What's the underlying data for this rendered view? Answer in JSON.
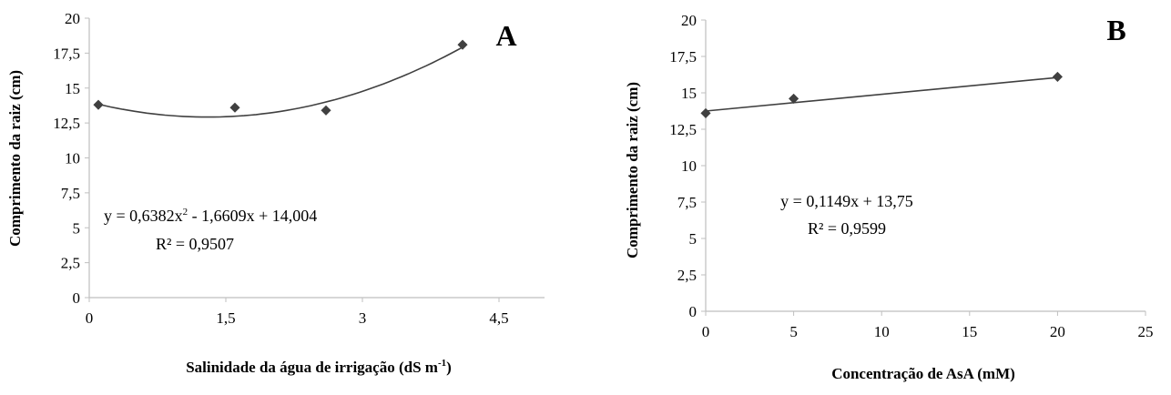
{
  "chart_data": [
    {
      "type": "scatter",
      "panel_label": "A",
      "xlabel_main": "Salinidade da água de irrigação (dS m",
      "xlabel_sup": "-1",
      "xlabel_end": ")",
      "ylabel": "Comprimento  da raiz  (cm)",
      "xlim": [
        0,
        5
      ],
      "ylim": [
        0,
        20
      ],
      "xticks": [
        0,
        1.5,
        3,
        4.5
      ],
      "xtick_labels": [
        "0",
        "1,5",
        "3",
        "4,5"
      ],
      "yticks": [
        0,
        2.5,
        5,
        7.5,
        10,
        12.5,
        15,
        17.5,
        20
      ],
      "ytick_labels": [
        "0",
        "2,5",
        "5",
        "7,5",
        "10",
        "12,5",
        "15",
        "17,5",
        "20"
      ],
      "points": [
        {
          "x": 0.1,
          "y": 13.8
        },
        {
          "x": 1.6,
          "y": 13.6
        },
        {
          "x": 2.6,
          "y": 13.4
        },
        {
          "x": 4.1,
          "y": 18.1
        }
      ],
      "trendline": {
        "kind": "quadratic",
        "a": 0.6382,
        "b": -1.6609,
        "c": 14.004,
        "x_range": [
          0.1,
          4.1
        ]
      },
      "equation_line1_main": "y = 0,6382x",
      "equation_line1_sup": "2",
      "equation_line1_end": " - 1,6609x + 14,004",
      "equation_line2": "R² = 0,9507",
      "grid": false,
      "marker": "diamond",
      "color": "#404040"
    },
    {
      "type": "scatter",
      "panel_label": "B",
      "xlabel_main": "Concentração de AsA (mM)",
      "ylabel": "Comprimento  da raiz  (cm)",
      "xlim": [
        0,
        25
      ],
      "ylim": [
        0,
        20
      ],
      "xticks": [
        0,
        5,
        10,
        15,
        20,
        25
      ],
      "xtick_labels": [
        "0",
        "5",
        "10",
        "15",
        "20",
        "25"
      ],
      "yticks": [
        0,
        2.5,
        5,
        7.5,
        10,
        12.5,
        15,
        17.5,
        20
      ],
      "ytick_labels": [
        "0",
        "2,5",
        "5",
        "7,5",
        "10",
        "12,5",
        "15",
        "17,5",
        "20"
      ],
      "points": [
        {
          "x": 0,
          "y": 13.6
        },
        {
          "x": 5,
          "y": 14.6
        },
        {
          "x": 20,
          "y": 16.1
        }
      ],
      "trendline": {
        "kind": "linear",
        "m": 0.1149,
        "b": 13.75,
        "x_range": [
          0,
          20
        ]
      },
      "equation_line1_main": "y = 0,1149x + 13,75",
      "equation_line2": "R² = 0,9599",
      "grid": false,
      "marker": "diamond",
      "color": "#404040"
    }
  ]
}
